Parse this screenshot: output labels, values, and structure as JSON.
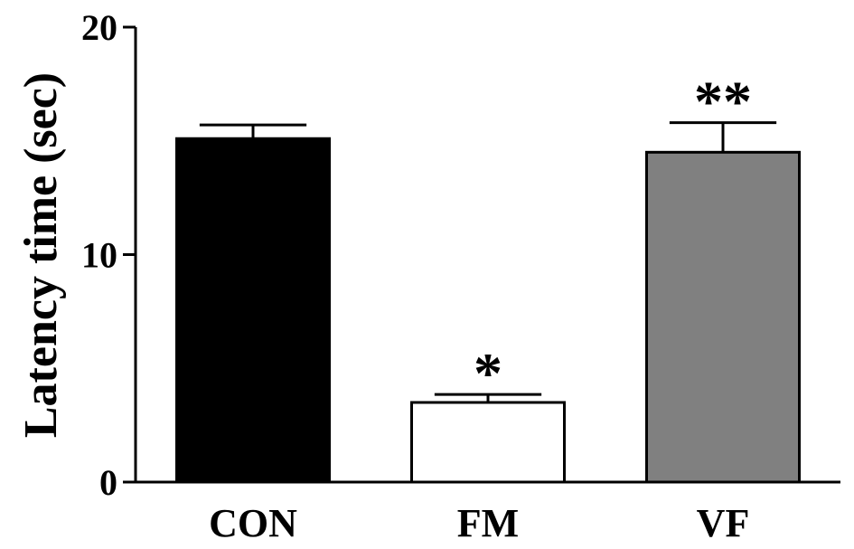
{
  "chart_data": {
    "type": "bar",
    "categories": [
      "CON",
      "FM",
      "VF"
    ],
    "values": [
      15.1,
      3.5,
      14.5
    ],
    "errors": [
      0.6,
      0.35,
      1.3
    ],
    "colors": [
      "#000000",
      "#ffffff",
      "#808080"
    ],
    "significance": [
      "",
      "*",
      "**"
    ],
    "ylabel": "Latency time (sec)",
    "xlabel": "",
    "title": "",
    "ylim": [
      0,
      20
    ],
    "yticks": [
      "0",
      "10",
      "20"
    ],
    "grid": false,
    "legend": false
  }
}
